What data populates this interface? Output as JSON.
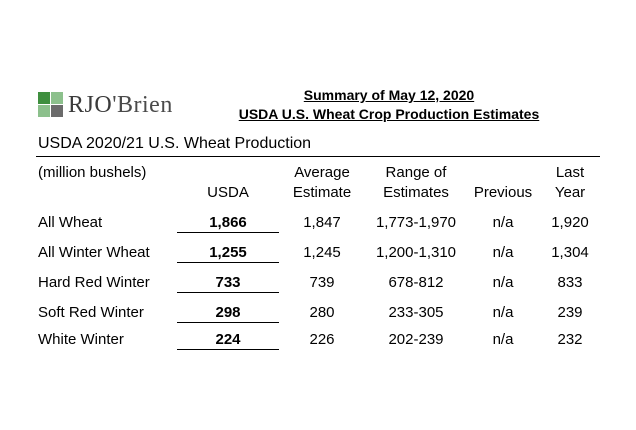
{
  "logo": {
    "text_a": "RJO",
    "text_b": "'Brien"
  },
  "header": {
    "line1": "Summary of May 12, 2020",
    "line2": "USDA U.S. Wheat Crop Production Estimates"
  },
  "section_title": "USDA 2020/21 U.S. Wheat Production",
  "units": "(million bushels)",
  "columns": {
    "usda": "USDA",
    "avg_1": "Average",
    "avg_2": "Estimate",
    "range_1": "Range of",
    "range_2": "Estimates",
    "previous": "Previous",
    "last_1": "Last",
    "last_2": "Year"
  },
  "rows": [
    {
      "label": "All Wheat",
      "usda": "1,866",
      "avg": "1,847",
      "range": "1,773-1,970",
      "previous": "n/a",
      "last": "1,920"
    },
    {
      "label": "All Winter Wheat",
      "usda": "1,255",
      "avg": "1,245",
      "range": "1,200-1,310",
      "previous": "n/a",
      "last": "1,304"
    },
    {
      "label": "Hard Red Winter",
      "usda": "733",
      "avg": "739",
      "range": "678-812",
      "previous": "n/a",
      "last": "833"
    },
    {
      "label": "Soft Red Winter",
      "usda": "298",
      "avg": "280",
      "range": "233-305",
      "previous": "n/a",
      "last": "239"
    },
    {
      "label": "White Winter",
      "usda": "224",
      "avg": "226",
      "range": "202-239",
      "previous": "n/a",
      "last": "232"
    }
  ],
  "colors": {
    "logo_green": "#3f8f3f",
    "logo_light_green": "#8cc08c",
    "logo_gray": "#6b6b6b"
  }
}
